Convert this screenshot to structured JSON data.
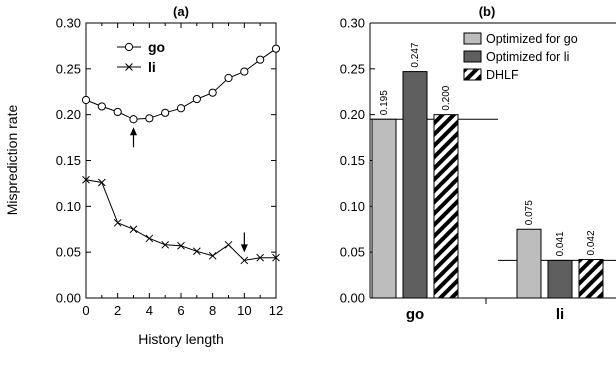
{
  "chart_data": [
    {
      "panel": "(a)",
      "type": "line",
      "title": "(a)",
      "xlabel": "History length",
      "ylabel": "Misprediction rate",
      "xlim": [
        0,
        12
      ],
      "ylim": [
        0,
        0.3
      ],
      "x_ticks": [
        "0",
        "2",
        "4",
        "6",
        "8",
        "10",
        "12"
      ],
      "y_ticks": [
        "0.00",
        "0.05",
        "0.10",
        "0.15",
        "0.20",
        "0.25",
        "0.30"
      ],
      "legend_position": "top-left",
      "grid": false,
      "x": [
        0,
        1,
        2,
        3,
        4,
        5,
        6,
        7,
        8,
        9,
        10,
        11,
        12
      ],
      "series": [
        {
          "name": "go",
          "marker": "open-circle",
          "values": [
            0.216,
            0.209,
            0.203,
            0.195,
            0.196,
            0.202,
            0.207,
            0.217,
            0.224,
            0.24,
            0.247,
            0.26,
            0.272
          ],
          "arrow_at_x": 3
        },
        {
          "name": "li",
          "marker": "x",
          "values": [
            0.129,
            0.126,
            0.082,
            0.075,
            0.065,
            0.058,
            0.057,
            0.051,
            0.046,
            0.058,
            0.041,
            0.044,
            0.044
          ],
          "arrow_at_x": 10
        }
      ]
    },
    {
      "panel": "(b)",
      "type": "bar",
      "title": "(b)",
      "xlabel": "",
      "ylabel": "",
      "ylim": [
        0,
        0.3
      ],
      "y_ticks": [
        "0.00",
        "0.05",
        "0.10",
        "0.15",
        "0.20",
        "0.25",
        "0.30"
      ],
      "categories": [
        "go",
        "li"
      ],
      "legend_position": "top-right",
      "grid": false,
      "series": [
        {
          "name": "Optimized for go",
          "color": "#bdbdbd",
          "pattern": "solid",
          "values": [
            0.195,
            0.075
          ],
          "labels": [
            "0.195",
            "0.075"
          ]
        },
        {
          "name": "Optimized for li",
          "color": "#5f5f5f",
          "pattern": "solid",
          "values": [
            0.247,
            0.041
          ],
          "labels": [
            "0.247",
            "0.041"
          ]
        },
        {
          "name": "DHLF",
          "color": "#000000",
          "pattern": "diagonal-stripes",
          "values": [
            0.2,
            0.042
          ],
          "labels": [
            "0.200",
            "0.042"
          ]
        }
      ],
      "reference_lines": [
        0.195,
        0.041
      ]
    }
  ]
}
